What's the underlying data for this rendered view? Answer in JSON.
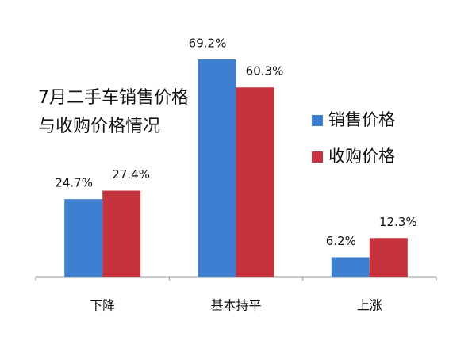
{
  "chart_data": {
    "type": "bar",
    "title": [
      "7月二手车销售价格",
      "与收购价格情况"
    ],
    "categories": [
      "下降",
      "基本持平",
      "上涨"
    ],
    "series": [
      {
        "name": "销售价格",
        "color": "#3f7fd2",
        "values": [
          24.7,
          69.2,
          6.2
        ],
        "value_labels": [
          "24.7%",
          "69.2%",
          "6.2%"
        ]
      },
      {
        "name": "收购价格",
        "color": "#c7323f",
        "values": [
          27.4,
          60.3,
          12.3
        ],
        "value_labels": [
          "27.4%",
          "60.3%",
          "12.3%"
        ]
      }
    ],
    "legend": "right"
  }
}
